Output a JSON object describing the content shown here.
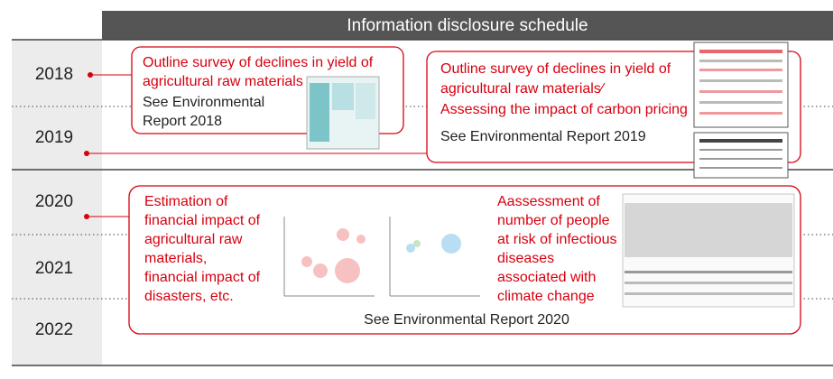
{
  "header": {
    "title": "Information disclosure schedule"
  },
  "years": [
    "2018",
    "2019",
    "2020",
    "2021",
    "2022"
  ],
  "items": [
    {
      "title_lines": [
        "Outline survey of declines in yield of",
        "agricultural raw materials"
      ],
      "reference_lines": [
        "See Environmental",
        "Report 2018"
      ]
    },
    {
      "title_lines": [
        "Outline survey of declines in yield of",
        "agricultural raw materials∕",
        "Assessing the impact of carbon pricing"
      ],
      "reference": "See Environmental Report 2019"
    },
    {
      "left_lines": [
        "Estimation of",
        "financial impact of",
        "agricultural raw",
        "materials,",
        "financial impact of",
        "disasters, etc."
      ],
      "right_lines": [
        "Aassessment of",
        "number of people",
        "at risk of infectious",
        "diseases",
        "associated with",
        "climate change"
      ],
      "reference": "See Environmental Report 2020"
    }
  ]
}
